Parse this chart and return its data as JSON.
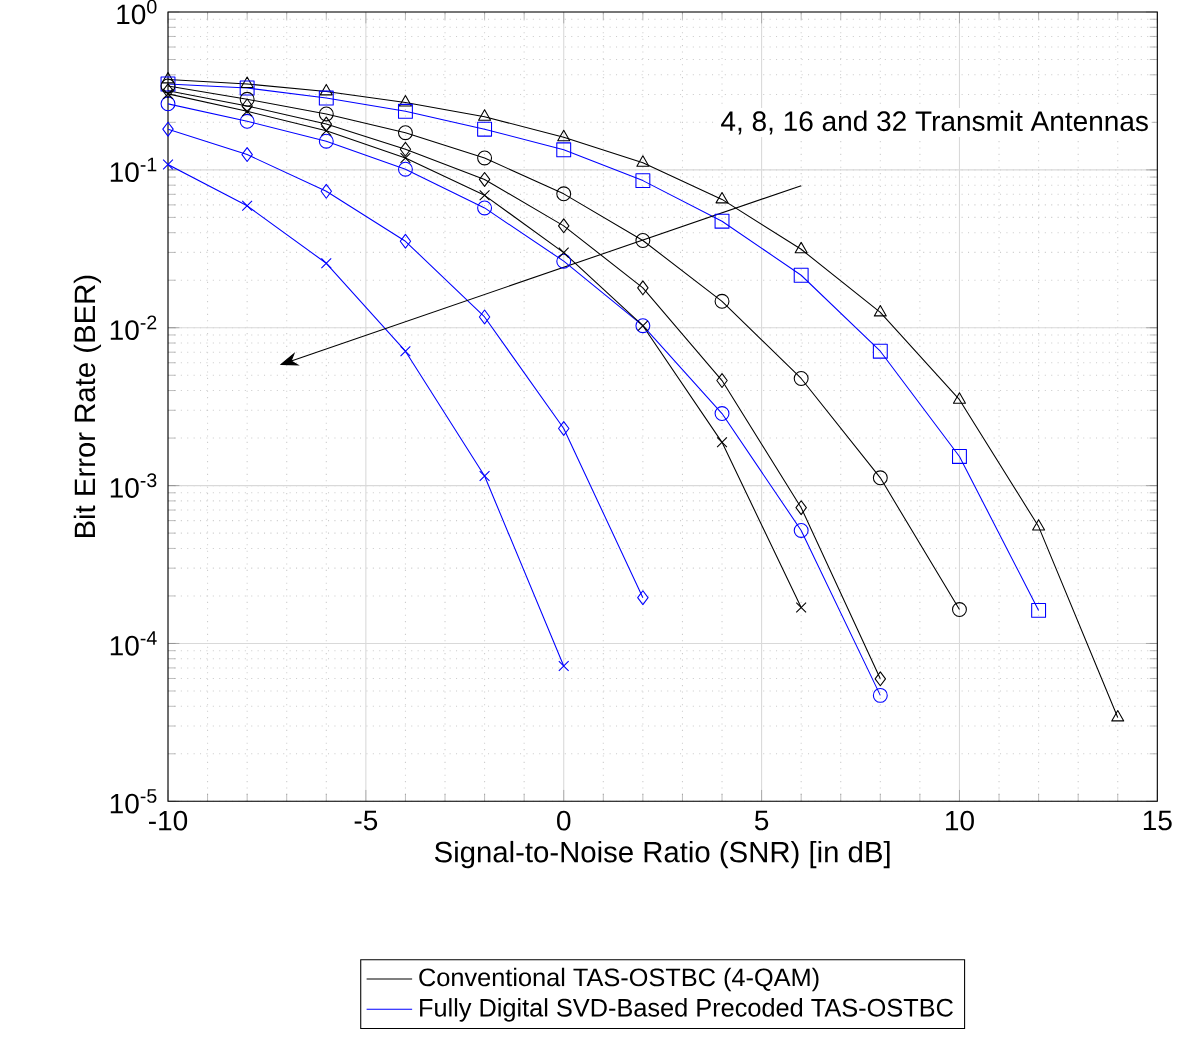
{
  "chart_data": {
    "type": "line",
    "xlabel": "Signal-to-Noise Ratio (SNR) [in dB]",
    "ylabel": "Bit Error Rate (BER)",
    "x": [
      -10,
      -8,
      -6,
      -4,
      -2,
      0,
      2,
      4,
      6,
      8,
      10,
      12,
      14
    ],
    "log": "y",
    "grid": true,
    "legend": "bottom",
    "line_style": "solid",
    "xlim": [
      -10,
      15
    ],
    "xticks": [
      -10,
      -5,
      0,
      5,
      10,
      15
    ],
    "ylim": [
      1e-05,
      1
    ],
    "yticks": [
      {
        "value": 1e-05,
        "label": "10$^{-5}$"
      },
      {
        "value": 0.0001,
        "label": "10$^{-4}$"
      },
      {
        "value": 0.001,
        "label": "10$^{-3}$"
      },
      {
        "value": 0.01,
        "label": "10$^{-2}$"
      },
      {
        "value": 0.1,
        "label": "10$^{-1}$"
      },
      {
        "value": 1,
        "label": "10$^{0}$"
      }
    ],
    "annotations": [
      "4, 8, 16 and 32 Transmit Antennas"
    ],
    "series": [
      {
        "name": "Conventional TAS-OSTBC (4-QAM)",
        "color": "#000000",
        "marker": "triangle",
        "values": [
          0.374,
          0.35,
          0.314,
          0.267,
          0.217,
          0.161,
          0.111,
          0.065,
          0.0314,
          0.0125,
          0.0035,
          0.00055,
          3.4e-05
        ]
      },
      {
        "name": "Fully Digital SVD-Based Precoded TAS-OSTBC",
        "color": "#0000ff",
        "marker": "square",
        "values": [
          0.35,
          0.33,
          0.285,
          0.235,
          0.181,
          0.134,
          0.0855,
          0.0473,
          0.0215,
          0.0071,
          0.00153,
          0.000162,
          null
        ]
      },
      {
        "color": "#000000",
        "marker": "circle",
        "values": [
          0.34,
          0.28,
          0.226,
          0.172,
          0.119,
          0.0705,
          0.0357,
          0.0147,
          0.00477,
          0.00112,
          0.000164,
          null,
          null
        ]
      },
      {
        "color": "#0000ff",
        "marker": "circle",
        "values": [
          0.262,
          0.203,
          0.152,
          0.101,
          0.0574,
          0.0264,
          0.0103,
          0.00286,
          0.00052,
          4.69e-05,
          null,
          null,
          null
        ]
      },
      {
        "color": "#000000",
        "marker": "diamond",
        "values": [
          0.317,
          0.254,
          0.195,
          0.135,
          0.087,
          0.0442,
          0.0179,
          0.00463,
          0.000725,
          5.97e-05,
          null,
          null,
          null
        ]
      },
      {
        "color": "#0000ff",
        "marker": "diamond",
        "values": [
          0.181,
          0.125,
          0.0732,
          0.0353,
          0.0117,
          0.0023,
          0.000195,
          null,
          null,
          null,
          null,
          null,
          null
        ]
      },
      {
        "color": "#000000",
        "marker": "cross",
        "values": [
          0.303,
          0.235,
          0.177,
          0.119,
          0.069,
          0.0299,
          0.0103,
          0.00188,
          0.000169,
          null,
          null,
          null,
          null
        ]
      },
      {
        "color": "#0000ff",
        "marker": "cross",
        "values": [
          0.108,
          0.0592,
          0.0256,
          0.0071,
          0.00115,
          7.2e-05,
          null,
          null,
          null,
          null,
          null,
          null,
          null
        ]
      }
    ]
  }
}
